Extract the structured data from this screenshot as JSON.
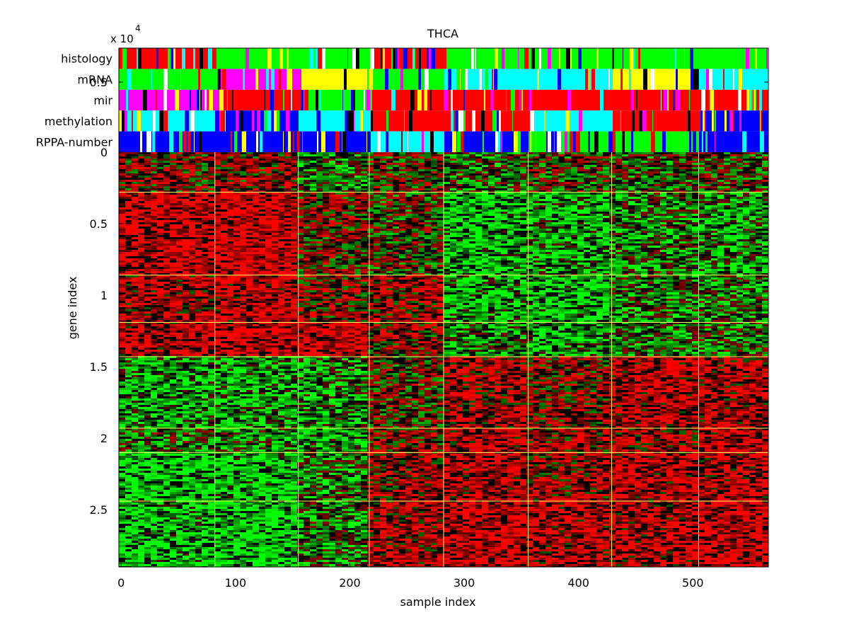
{
  "chart_data": {
    "type": "heatmap",
    "title": "THCA",
    "xlabel": "sample index",
    "ylabel": "gene index",
    "y_exponent_base": "x 10",
    "y_exponent_power": "4",
    "x_ticks": [
      "0",
      "100",
      "200",
      "300",
      "400",
      "500"
    ],
    "x_tick_values": [
      0,
      100,
      200,
      300,
      400,
      500
    ],
    "y_ticks": [
      "0",
      "0.5",
      "1",
      "1.5",
      "2",
      "2.5"
    ],
    "y_tick_values": [
      0,
      0.5,
      1,
      1.5,
      2,
      2.5
    ],
    "xlim": [
      -2,
      566
    ],
    "ylim": [
      0,
      2.9
    ],
    "annotation_track_labels": [
      "histology",
      "mRNA",
      "mir",
      "methylation",
      "RPPA-number"
    ],
    "overlap_tick_label": "0.5",
    "sample_group_boundaries": [
      82,
      155,
      217,
      282,
      356,
      429,
      505
    ],
    "gene_group_boundaries": [
      0.28,
      0.86,
      1.19,
      1.43,
      1.93,
      2.1,
      2.44
    ],
    "colors": {
      "heat_high": "#ff0000",
      "heat_low": "#00ff00",
      "heat_mid": "#000000",
      "grid_lines": "#ffff66",
      "track_palette": [
        "#ff0000",
        "#00ff00",
        "#0000ff",
        "#00ffff",
        "#ff00ff",
        "#ffff00",
        "#000000",
        "#ffffff"
      ]
    }
  }
}
